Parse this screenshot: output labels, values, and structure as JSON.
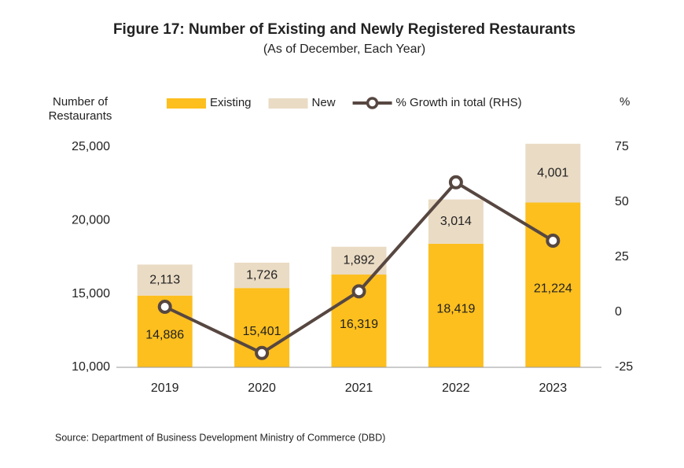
{
  "chart_data": {
    "type": "bar",
    "title": "Figure 17: Number of Existing and Newly Registered Restaurants",
    "subtitle": "(As of December, Each Year)",
    "y_label": "Number of Restaurants",
    "y2_label": "%",
    "source": "Source: Department of Business Development Ministry of Commerce (DBD)",
    "categories": [
      "2019",
      "2020",
      "2021",
      "2022",
      "2023"
    ],
    "series": [
      {
        "name": "Existing",
        "type": "bar",
        "color": "#fdbf1e",
        "values": [
          14886,
          15401,
          16319,
          18419,
          21224
        ],
        "value_labels": [
          "14,886",
          "15,401",
          "16,319",
          "18,419",
          "21,224"
        ]
      },
      {
        "name": "New",
        "type": "bar",
        "color": "#eadbc4",
        "values": [
          2113,
          1726,
          1892,
          3014,
          4001
        ],
        "value_labels": [
          "2,113",
          "1,726",
          "1,892",
          "3,014",
          "4,001"
        ]
      },
      {
        "name": "% Growth in total (RHS)",
        "type": "line",
        "axis": "y2",
        "color": "#574741",
        "values": [
          2.5,
          -18.5,
          9.5,
          59,
          32.5
        ]
      }
    ],
    "stacked": true,
    "ylim": [
      10000,
      25000
    ],
    "yticks": [
      {
        "value": 10000,
        "label": "10,000"
      },
      {
        "value": 15000,
        "label": "15,000"
      },
      {
        "value": 20000,
        "label": "20,000"
      },
      {
        "value": 25000,
        "label": "25,000"
      }
    ],
    "y2lim": [
      -25,
      75
    ],
    "y2ticks": [
      -25,
      0,
      25,
      50,
      75
    ],
    "legend": "top"
  }
}
